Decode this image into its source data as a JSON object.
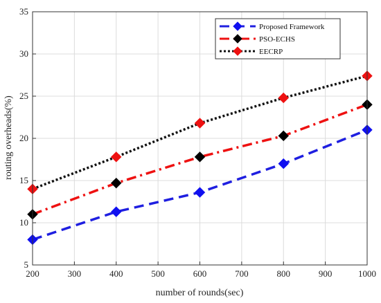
{
  "chart_data": {
    "type": "line",
    "xlabel": "number of rounds(sec)",
    "ylabel": "routing overheads(%)",
    "xlim": [
      200,
      1000
    ],
    "ylim": [
      5,
      35
    ],
    "xticks": [
      200,
      300,
      400,
      500,
      600,
      700,
      800,
      900,
      1000
    ],
    "yticks": [
      5,
      10,
      15,
      20,
      25,
      30,
      35
    ],
    "grid": true,
    "legend_position": "top-right",
    "x": [
      200,
      400,
      600,
      800,
      1000
    ],
    "series": [
      {
        "name": "Proposed Framework",
        "values": [
          8,
          11.3,
          13.6,
          17,
          21
        ],
        "line_color": "#1f1fe0",
        "marker_color": "#1010f0",
        "line_style": "dashed"
      },
      {
        "name": "PSO-ECHS",
        "values": [
          11,
          14.7,
          17.8,
          20.3,
          24
        ],
        "line_color": "#ee1111",
        "marker_color": "#000000",
        "line_style": "dash-dot"
      },
      {
        "name": "EECRP",
        "values": [
          14,
          17.8,
          21.8,
          24.8,
          27.4
        ],
        "line_color": "#111111",
        "marker_color": "#ee1111",
        "line_style": "dotted"
      }
    ]
  }
}
